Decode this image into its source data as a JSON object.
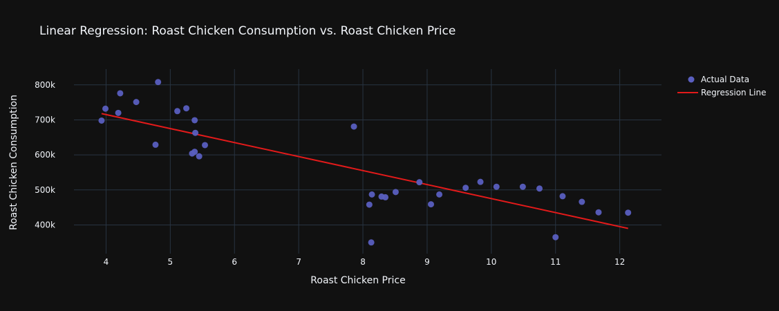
{
  "chart_data": {
    "type": "scatter",
    "title": "Linear Regression: Roast Chicken Consumption vs. Roast Chicken Price",
    "xlabel": "Roast Chicken Price",
    "ylabel": "Roast Chicken Consumption",
    "xlim": [
      3.5,
      12.65
    ],
    "ylim": [
      318000,
      845000
    ],
    "x_ticks": [
      4,
      5,
      6,
      7,
      8,
      9,
      10,
      11,
      12
    ],
    "y_ticks": [
      400000,
      500000,
      600000,
      700000,
      800000
    ],
    "y_tick_labels": [
      "400k",
      "500k",
      "600k",
      "700k",
      "800k"
    ],
    "grid": true,
    "legend_position": "top-right",
    "series": [
      {
        "name": "Actual Data",
        "type": "scatter",
        "color": "#5a5fc0",
        "points": [
          [
            3.93,
            698000
          ],
          [
            3.99,
            732000
          ],
          [
            4.19,
            720000
          ],
          [
            4.22,
            776000
          ],
          [
            4.47,
            751000
          ],
          [
            4.77,
            629000
          ],
          [
            4.81,
            808000
          ],
          [
            5.11,
            725000
          ],
          [
            5.25,
            733000
          ],
          [
            5.34,
            604000
          ],
          [
            5.38,
            609000
          ],
          [
            5.38,
            699000
          ],
          [
            5.39,
            663000
          ],
          [
            5.45,
            596000
          ],
          [
            5.54,
            628000
          ],
          [
            7.86,
            681000
          ],
          [
            8.1,
            458000
          ],
          [
            8.13,
            350000
          ],
          [
            8.14,
            487000
          ],
          [
            8.29,
            481000
          ],
          [
            8.35,
            479000
          ],
          [
            8.51,
            494000
          ],
          [
            8.88,
            522000
          ],
          [
            9.06,
            459000
          ],
          [
            9.19,
            487000
          ],
          [
            9.6,
            506000
          ],
          [
            9.83,
            523000
          ],
          [
            10.08,
            509000
          ],
          [
            10.49,
            509000
          ],
          [
            10.75,
            504000
          ],
          [
            11.0,
            365000
          ],
          [
            11.11,
            482000
          ],
          [
            11.41,
            466000
          ],
          [
            11.67,
            436000
          ],
          [
            12.13,
            435000
          ]
        ]
      },
      {
        "name": "Regression Line",
        "type": "line",
        "color": "#e31a1a",
        "points": [
          [
            3.93,
            718000
          ],
          [
            12.13,
            390000
          ]
        ]
      }
    ]
  }
}
